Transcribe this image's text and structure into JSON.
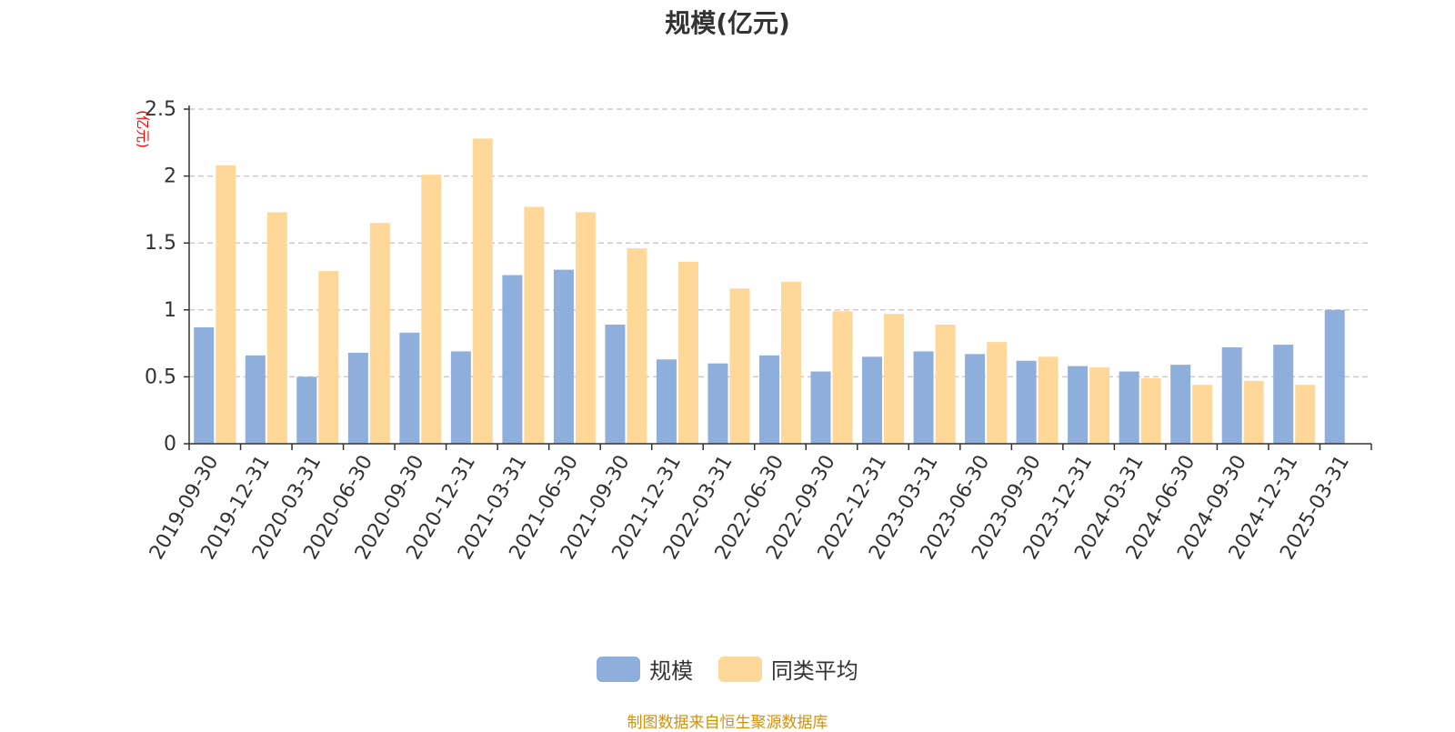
{
  "chart_data": {
    "type": "bar",
    "title": "规模(亿元)",
    "ylabel": "(亿元)",
    "ylim": [
      0,
      2.5
    ],
    "yticks": [
      "0",
      "0.5",
      "1",
      "1.5",
      "2",
      "2.5"
    ],
    "grid": true,
    "legend_position": "bottom-center",
    "categories": [
      "2019-09-30",
      "2019-12-31",
      "2020-03-31",
      "2020-06-30",
      "2020-09-30",
      "2020-12-31",
      "2021-03-31",
      "2021-06-30",
      "2021-09-30",
      "2021-12-31",
      "2022-03-31",
      "2022-06-30",
      "2022-09-30",
      "2022-12-31",
      "2023-03-31",
      "2023-06-30",
      "2023-09-30",
      "2023-12-31",
      "2024-03-31",
      "2024-06-30",
      "2024-09-30",
      "2024-12-31",
      "2025-03-31"
    ],
    "series": [
      {
        "name": "规模",
        "color": "#8eaedb",
        "values": [
          0.87,
          0.66,
          0.5,
          0.68,
          0.83,
          0.69,
          1.26,
          1.3,
          0.89,
          0.63,
          0.6,
          0.66,
          0.54,
          0.65,
          0.69,
          0.67,
          0.62,
          0.58,
          0.54,
          0.59,
          0.72,
          0.74,
          1.0
        ]
      },
      {
        "name": "同类平均",
        "color": "#ffd899",
        "values": [
          2.08,
          1.73,
          1.29,
          1.65,
          2.01,
          2.28,
          1.77,
          1.73,
          1.46,
          1.36,
          1.16,
          1.21,
          0.99,
          0.97,
          0.89,
          0.76,
          0.65,
          0.57,
          0.49,
          0.44,
          0.47,
          0.44,
          null
        ]
      }
    ]
  },
  "source_note": "制图数据来自恒生聚源数据库",
  "colors": {
    "ylabel": "#ff0000",
    "source_note": "#d4900a",
    "grid": "#cccccc",
    "axis": "#333333"
  }
}
